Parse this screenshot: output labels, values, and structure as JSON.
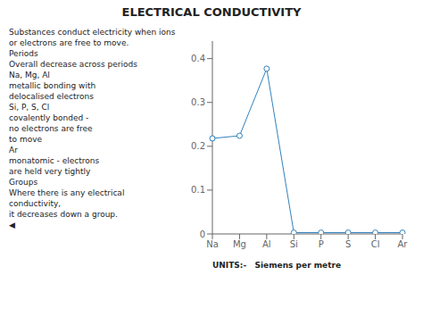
{
  "chart_data": {
    "type": "line",
    "title": "ELECTRICAL CONDUCTIVITY",
    "categories": [
      "Na",
      "Mg",
      "Al",
      "Si",
      "P",
      "S",
      "Cl",
      "Ar"
    ],
    "values": [
      0.218,
      0.224,
      0.377,
      0.003,
      0.003,
      0.003,
      0.003,
      0.003
    ],
    "ylim": [
      0,
      0.44
    ],
    "yticks": [
      0,
      0.1,
      0.2,
      0.3,
      0.4
    ],
    "xlabel": "UNITS:-   Siemens per metre",
    "grid": false,
    "marker": "circle",
    "annotations": [
      "Substances conduct electricity when ions",
      "or electrons are free to move.",
      "Periods",
      "Overall decrease across periods",
      "Na, Mg, Al",
      "metallic bonding with",
      "delocalised electrons",
      "Si, P, S, Cl",
      "covalently bonded -",
      "no electrons are free",
      "to move",
      "Ar",
      "monatomic - electrons",
      "are held very tightly",
      "Groups",
      "Where there is any electrical conductivity,",
      "it decreases down a group.",
      "◀"
    ]
  }
}
